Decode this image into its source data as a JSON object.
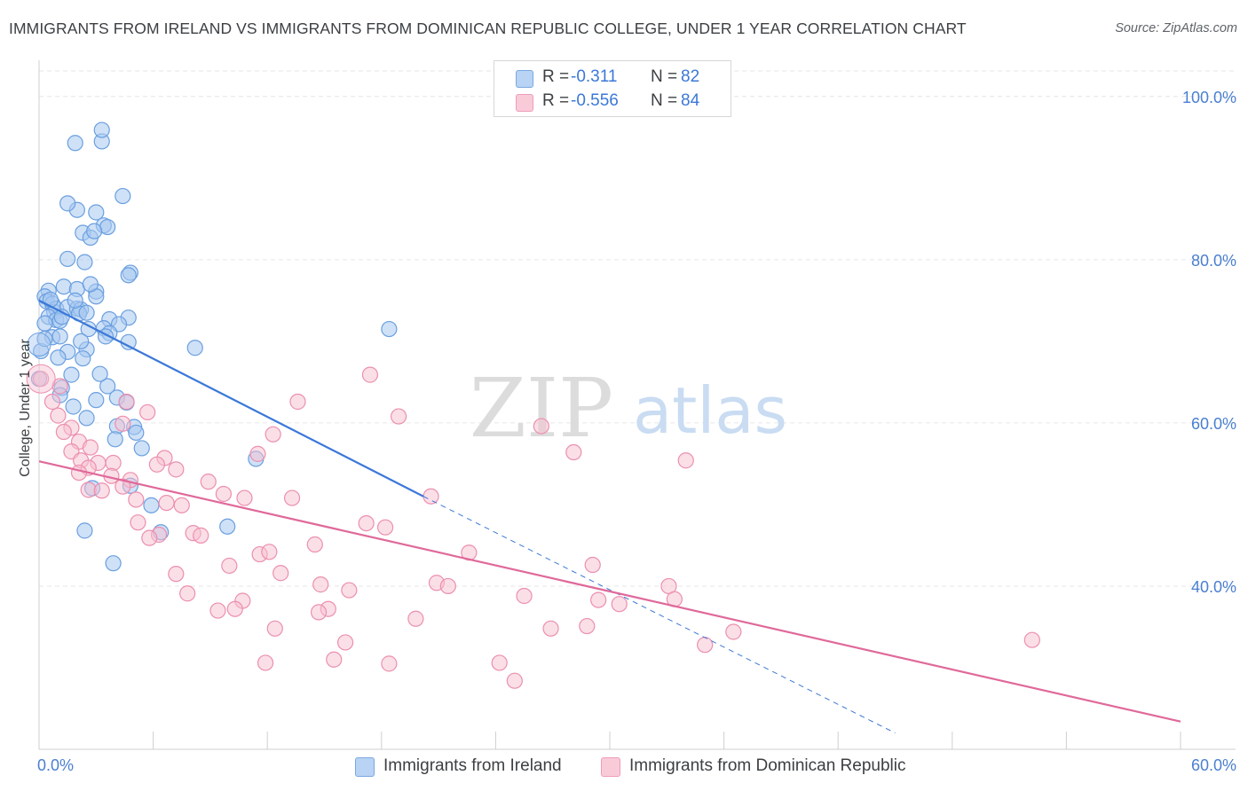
{
  "title": "IMMIGRANTS FROM IRELAND VS IMMIGRANTS FROM DOMINICAN REPUBLIC COLLEGE, UNDER 1 YEAR CORRELATION CHART",
  "source": "Source: ZipAtlas.com",
  "watermark": {
    "zip": "ZIP",
    "atlas": "atlas"
  },
  "legend": {
    "rows": [
      {
        "r_label": "R =",
        "r_value": "-0.311",
        "n_label": "N =",
        "n_value": "82"
      },
      {
        "r_label": "R =",
        "r_value": "-0.556",
        "n_label": "N =",
        "n_value": "84"
      }
    ]
  },
  "bottom_legend": {
    "items": [
      {
        "label": "Immigrants from Ireland"
      },
      {
        "label": "Immigrants from Dominican Republic"
      }
    ]
  },
  "colors": {
    "ireland_fill": "#a8c8f0",
    "ireland_stroke": "#6a9fe0",
    "ireland_line": "#3b78d8",
    "dr_fill": "#f7bfd0",
    "dr_stroke": "#ec8fae",
    "dr_line": "#e0699a",
    "grid": "#e6e6e6",
    "tick_label": "#4a7fd0"
  },
  "chart_data": {
    "type": "scatter",
    "title": "IMMIGRANTS FROM IRELAND VS IMMIGRANTS FROM DOMINICAN REPUBLIC COLLEGE, UNDER 1 YEAR CORRELATION CHART",
    "xlabel": "",
    "ylabel": "College, Under 1 year",
    "xlim": [
      0,
      60
    ],
    "ylim": [
      20,
      104
    ],
    "x_tick_labels": [
      "0.0%",
      "60.0%"
    ],
    "y_ticks": [
      40,
      60,
      80,
      100
    ],
    "y_tick_labels": [
      "40.0%",
      "60.0%",
      "80.0%",
      "100.0%"
    ],
    "x_minor_ticks": [
      0,
      6,
      12,
      18,
      24,
      30,
      36,
      42,
      48,
      54,
      60
    ],
    "grid": "horizontal dashed",
    "legend_position": "top-center",
    "series": [
      {
        "name": "Immigrants from Ireland",
        "R": -0.311,
        "N": 82,
        "trend": {
          "x": [
            0,
            20.2
          ],
          "y": [
            75.0,
            51.0
          ],
          "dashed_extension_to": [
            45,
            22
          ]
        },
        "points": [
          [
            1.9,
            94.3
          ],
          [
            3.3,
            94.5
          ],
          [
            3.3,
            95.9
          ],
          [
            2.0,
            86.1
          ],
          [
            3.0,
            85.8
          ],
          [
            4.4,
            87.8
          ],
          [
            1.5,
            86.9
          ],
          [
            2.3,
            83.3
          ],
          [
            2.7,
            82.7
          ],
          [
            3.4,
            84.2
          ],
          [
            3.6,
            84.0
          ],
          [
            2.9,
            83.5
          ],
          [
            1.5,
            80.1
          ],
          [
            2.4,
            79.7
          ],
          [
            4.8,
            78.4
          ],
          [
            4.7,
            78.1
          ],
          [
            0.5,
            76.2
          ],
          [
            1.3,
            76.7
          ],
          [
            2.0,
            76.4
          ],
          [
            3.0,
            76.1
          ],
          [
            3.0,
            75.5
          ],
          [
            2.7,
            77.0
          ],
          [
            0.3,
            75.5
          ],
          [
            0.4,
            74.9
          ],
          [
            0.7,
            74.6
          ],
          [
            0.8,
            73.6
          ],
          [
            0.9,
            74.0
          ],
          [
            1.5,
            74.2
          ],
          [
            2.0,
            74.0
          ],
          [
            2.2,
            73.9
          ],
          [
            2.1,
            73.4
          ],
          [
            2.5,
            73.5
          ],
          [
            0.5,
            73.0
          ],
          [
            0.9,
            72.6
          ],
          [
            1.1,
            72.5
          ],
          [
            1.2,
            73.0
          ],
          [
            3.7,
            72.7
          ],
          [
            4.7,
            72.9
          ],
          [
            4.2,
            72.1
          ],
          [
            2.6,
            71.5
          ],
          [
            3.4,
            71.6
          ],
          [
            3.7,
            71.0
          ],
          [
            3.5,
            70.6
          ],
          [
            0.7,
            70.5
          ],
          [
            1.1,
            70.6
          ],
          [
            4.7,
            69.9
          ],
          [
            8.2,
            69.2
          ],
          [
            2.5,
            69.0
          ],
          [
            1.5,
            68.7
          ],
          [
            2.3,
            67.9
          ],
          [
            0.1,
            68.8
          ],
          [
            0.3,
            70.3
          ],
          [
            1.7,
            65.9
          ],
          [
            3.6,
            64.5
          ],
          [
            1.2,
            64.3
          ],
          [
            1.1,
            63.4
          ],
          [
            3.0,
            62.8
          ],
          [
            4.1,
            63.1
          ],
          [
            4.6,
            62.5
          ],
          [
            2.5,
            60.6
          ],
          [
            4.1,
            59.6
          ],
          [
            5.0,
            59.5
          ],
          [
            5.1,
            58.8
          ],
          [
            5.4,
            56.9
          ],
          [
            11.4,
            55.6
          ],
          [
            0.0,
            65.4
          ],
          [
            4.8,
            52.3
          ],
          [
            5.9,
            49.9
          ],
          [
            6.4,
            46.6
          ],
          [
            9.9,
            47.3
          ],
          [
            2.4,
            46.8
          ],
          [
            3.9,
            42.8
          ],
          [
            18.4,
            71.5
          ],
          [
            0.6,
            75.1
          ],
          [
            1.9,
            75.0
          ],
          [
            0.3,
            72.2
          ],
          [
            2.2,
            70.0
          ],
          [
            1.0,
            68.0
          ],
          [
            3.2,
            66.0
          ],
          [
            1.8,
            62.0
          ],
          [
            4.0,
            58.0
          ],
          [
            2.8,
            52.0
          ]
        ]
      },
      {
        "name": "Immigrants from Dominican Republic",
        "R": -0.556,
        "N": 84,
        "trend": {
          "x": [
            0,
            60
          ],
          "y": [
            55.3,
            23.4
          ]
        },
        "points": [
          [
            0.1,
            65.4
          ],
          [
            1.1,
            64.5
          ],
          [
            0.7,
            62.6
          ],
          [
            1.0,
            60.9
          ],
          [
            1.7,
            59.4
          ],
          [
            1.3,
            58.9
          ],
          [
            2.1,
            57.7
          ],
          [
            2.7,
            57.0
          ],
          [
            1.7,
            56.5
          ],
          [
            2.2,
            55.4
          ],
          [
            3.1,
            55.1
          ],
          [
            3.9,
            55.1
          ],
          [
            2.6,
            54.5
          ],
          [
            2.1,
            53.9
          ],
          [
            3.8,
            53.5
          ],
          [
            4.8,
            53.0
          ],
          [
            2.6,
            51.8
          ],
          [
            3.3,
            51.7
          ],
          [
            4.4,
            52.2
          ],
          [
            5.1,
            50.6
          ],
          [
            5.2,
            47.8
          ],
          [
            6.6,
            55.7
          ],
          [
            6.2,
            54.9
          ],
          [
            7.2,
            54.3
          ],
          [
            4.6,
            62.6
          ],
          [
            4.4,
            59.9
          ],
          [
            5.7,
            61.3
          ],
          [
            6.7,
            50.2
          ],
          [
            6.3,
            46.3
          ],
          [
            5.8,
            45.9
          ],
          [
            7.5,
            49.9
          ],
          [
            8.1,
            46.5
          ],
          [
            8.5,
            46.2
          ],
          [
            8.9,
            52.8
          ],
          [
            9.7,
            51.3
          ],
          [
            10.8,
            50.8
          ],
          [
            11.5,
            56.2
          ],
          [
            12.3,
            58.6
          ],
          [
            13.3,
            50.8
          ],
          [
            13.6,
            62.6
          ],
          [
            11.6,
            43.9
          ],
          [
            12.1,
            44.2
          ],
          [
            12.7,
            41.6
          ],
          [
            10.0,
            42.5
          ],
          [
            10.7,
            38.2
          ],
          [
            10.3,
            37.2
          ],
          [
            9.4,
            37.0
          ],
          [
            7.2,
            41.5
          ],
          [
            7.8,
            39.1
          ],
          [
            12.4,
            34.8
          ],
          [
            11.9,
            30.6
          ],
          [
            14.5,
            45.1
          ],
          [
            14.8,
            40.2
          ],
          [
            15.2,
            37.2
          ],
          [
            14.7,
            36.8
          ],
          [
            16.1,
            33.1
          ],
          [
            16.3,
            39.5
          ],
          [
            17.2,
            47.7
          ],
          [
            18.2,
            47.2
          ],
          [
            17.4,
            65.9
          ],
          [
            18.9,
            60.8
          ],
          [
            19.8,
            36.0
          ],
          [
            20.9,
            40.4
          ],
          [
            21.5,
            40.0
          ],
          [
            22.6,
            44.1
          ],
          [
            24.2,
            30.6
          ],
          [
            25.0,
            28.4
          ],
          [
            25.5,
            38.8
          ],
          [
            26.4,
            59.6
          ],
          [
            26.9,
            34.8
          ],
          [
            28.1,
            56.4
          ],
          [
            28.8,
            35.1
          ],
          [
            29.1,
            42.6
          ],
          [
            29.4,
            38.3
          ],
          [
            30.5,
            37.8
          ],
          [
            33.1,
            40.0
          ],
          [
            33.4,
            38.4
          ],
          [
            35.0,
            32.8
          ],
          [
            36.5,
            34.4
          ],
          [
            34.0,
            55.4
          ],
          [
            52.2,
            33.4
          ],
          [
            18.4,
            30.5
          ],
          [
            15.5,
            31.0
          ],
          [
            20.6,
            51.0
          ]
        ]
      }
    ]
  }
}
